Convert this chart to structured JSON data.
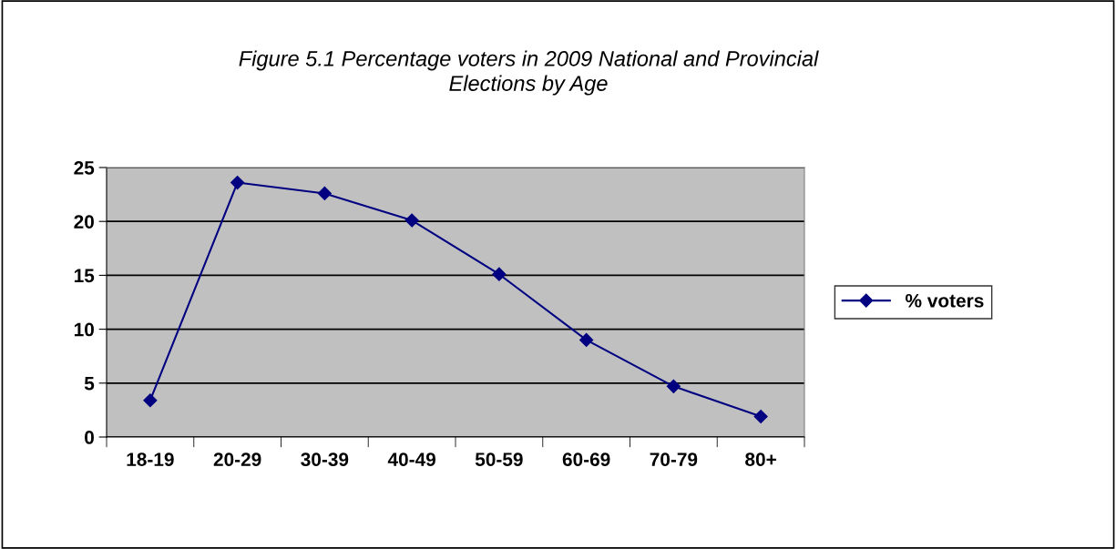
{
  "chart_data": {
    "type": "line",
    "title": "Figure 5.1 Percentage voters in 2009 National and Provincial\nElections by Age",
    "categories": [
      "18-19",
      "20-29",
      "30-39",
      "40-49",
      "50-59",
      "60-69",
      "70-79",
      "80+"
    ],
    "series": [
      {
        "name": "% voters",
        "color": "#000080",
        "values": [
          3.4,
          23.6,
          22.6,
          20.1,
          15.1,
          9.0,
          4.7,
          1.9
        ]
      }
    ],
    "ylim": [
      0,
      25
    ],
    "yticks": [
      0,
      5,
      10,
      15,
      20,
      25
    ],
    "grid": "y",
    "legend": "right",
    "marker": "diamond",
    "line_style": "solid"
  }
}
